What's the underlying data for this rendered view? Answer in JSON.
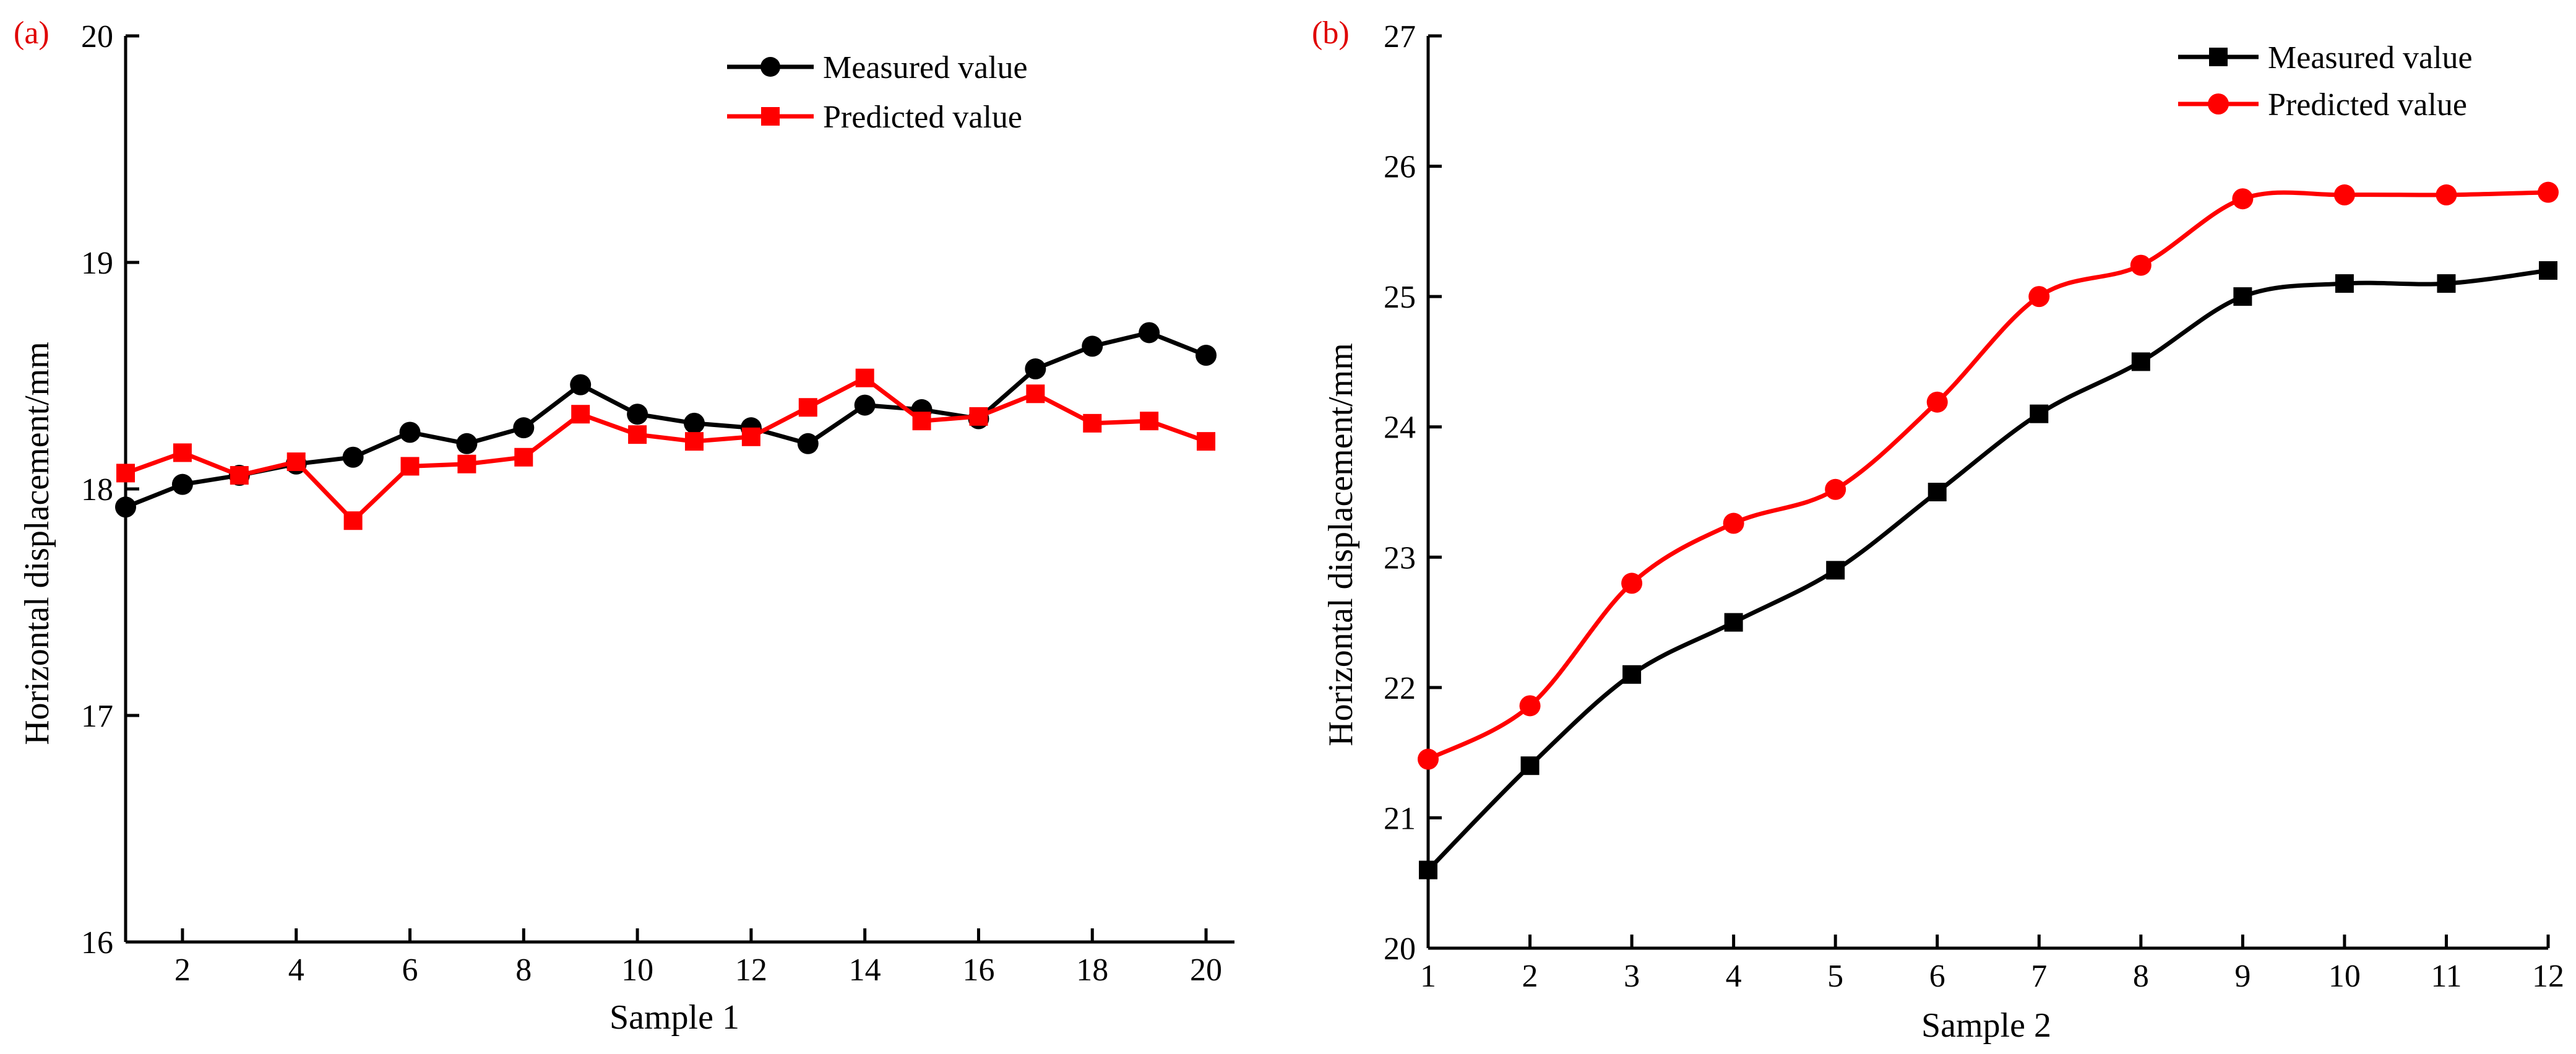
{
  "chart_data": [
    {
      "type": "line",
      "panel_label": "(a)",
      "xlabel": "Sample 1",
      "ylabel": "Horizontal displacement/mm",
      "xlim": [
        1,
        20.5
      ],
      "ylim": [
        16,
        20
      ],
      "x_ticks": [
        2,
        4,
        6,
        8,
        10,
        12,
        14,
        16,
        18,
        20
      ],
      "y_ticks": [
        16,
        17,
        18,
        19,
        20
      ],
      "grid": false,
      "legend_position": "top-right",
      "x": [
        1,
        2,
        3,
        4,
        5,
        6,
        7,
        8,
        9,
        10,
        11,
        12,
        13,
        14,
        15,
        16,
        17,
        18,
        19,
        20
      ],
      "series": [
        {
          "name": "Measured value",
          "color": "#000000",
          "marker": "circle",
          "smooth": false,
          "values": [
            17.92,
            18.02,
            18.06,
            18.11,
            18.14,
            18.25,
            18.2,
            18.27,
            18.46,
            18.33,
            18.29,
            18.27,
            18.2,
            18.37,
            18.35,
            18.31,
            18.53,
            18.63,
            18.69,
            18.59
          ]
        },
        {
          "name": "Predicted value",
          "color": "#ff0000",
          "marker": "square",
          "smooth": false,
          "values": [
            18.07,
            18.16,
            18.06,
            18.12,
            17.86,
            18.1,
            18.11,
            18.14,
            18.33,
            18.24,
            18.21,
            18.23,
            18.36,
            18.49,
            18.3,
            18.32,
            18.42,
            18.29,
            18.3,
            18.21
          ]
        }
      ]
    },
    {
      "type": "line",
      "panel_label": "(b)",
      "xlabel": "Sample 2",
      "ylabel": "Horizontal displacement/mm",
      "xlim": [
        1,
        12
      ],
      "ylim": [
        20,
        27
      ],
      "x_ticks": [
        1,
        2,
        3,
        4,
        5,
        6,
        7,
        8,
        9,
        10,
        11,
        12
      ],
      "y_ticks": [
        20,
        21,
        22,
        23,
        24,
        25,
        26,
        27
      ],
      "grid": false,
      "legend_position": "top-right",
      "x": [
        1,
        2,
        3,
        4,
        5,
        6,
        7,
        8,
        9,
        10,
        11,
        12
      ],
      "series": [
        {
          "name": "Measured value",
          "color": "#000000",
          "marker": "square",
          "smooth": true,
          "values": [
            20.6,
            21.4,
            22.1,
            22.5,
            22.9,
            23.5,
            24.1,
            24.5,
            25.0,
            25.1,
            25.1,
            25.2
          ]
        },
        {
          "name": "Predicted value",
          "color": "#ff0000",
          "marker": "circle",
          "smooth": true,
          "values": [
            21.45,
            21.86,
            22.8,
            23.26,
            23.52,
            24.19,
            25.0,
            25.24,
            25.75,
            25.78,
            25.78,
            25.8
          ]
        }
      ]
    }
  ]
}
